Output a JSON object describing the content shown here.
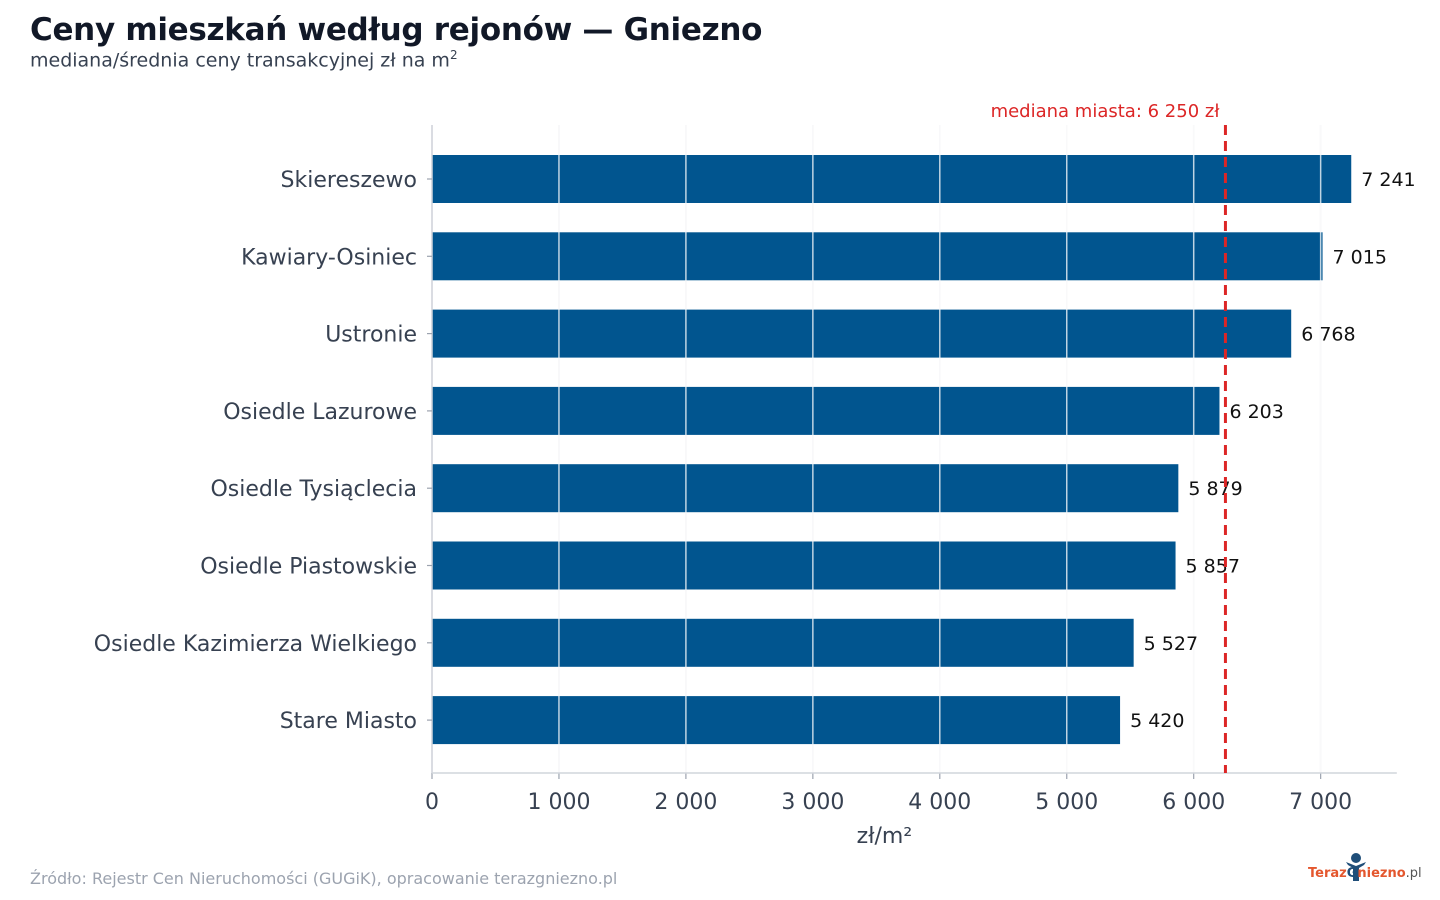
{
  "header": {
    "title": "Ceny mieszkań według rejonów — Gniezno",
    "subtitle": "mediana/średnia ceny transakcyjnej zł na m",
    "subtitle_sup": "2"
  },
  "footer": {
    "source": "Źródło: Rejestr Cen Nieruchomości (GUGiK), opracowanie terazgniezno.pl",
    "logo_parts": [
      "Teraz",
      "G",
      "niezno",
      ".pl"
    ]
  },
  "colors": {
    "bar": "#01558f",
    "reference": "#dc2626",
    "grid": "#e5e7eb",
    "axis": "#d1d5db"
  },
  "chart_data": {
    "type": "bar",
    "orientation": "horizontal",
    "title": "Ceny mieszkań według rejonów — Gniezno",
    "subtitle": "mediana/średnia ceny transakcyjnej zł na m²",
    "xlabel": "zł/m²",
    "ylabel": "",
    "xlim": [
      0,
      7600
    ],
    "xticks": [
      0,
      1000,
      2000,
      3000,
      4000,
      5000,
      6000,
      7000
    ],
    "xtick_labels": [
      "0",
      "1 000",
      "2 000",
      "3 000",
      "4 000",
      "5 000",
      "6 000",
      "7 000"
    ],
    "grid": true,
    "categories": [
      "Skiereszewo",
      "Kawiary-Osiniec",
      "Ustronie",
      "Osiedle Lazurowe",
      "Osiedle Tysiąclecia",
      "Osiedle Piastowskie",
      "Osiedle Kazimierza Wielkiego",
      "Stare Miasto"
    ],
    "values": [
      7241,
      7015,
      6768,
      6203,
      5879,
      5857,
      5527,
      5420
    ],
    "value_labels": [
      "7 241",
      "7 015",
      "6 768",
      "6 203",
      "5 879",
      "5 857",
      "5 527",
      "5 420"
    ],
    "reference_line": {
      "value": 6250,
      "label": "mediana miasta: 6 250 zł"
    }
  }
}
